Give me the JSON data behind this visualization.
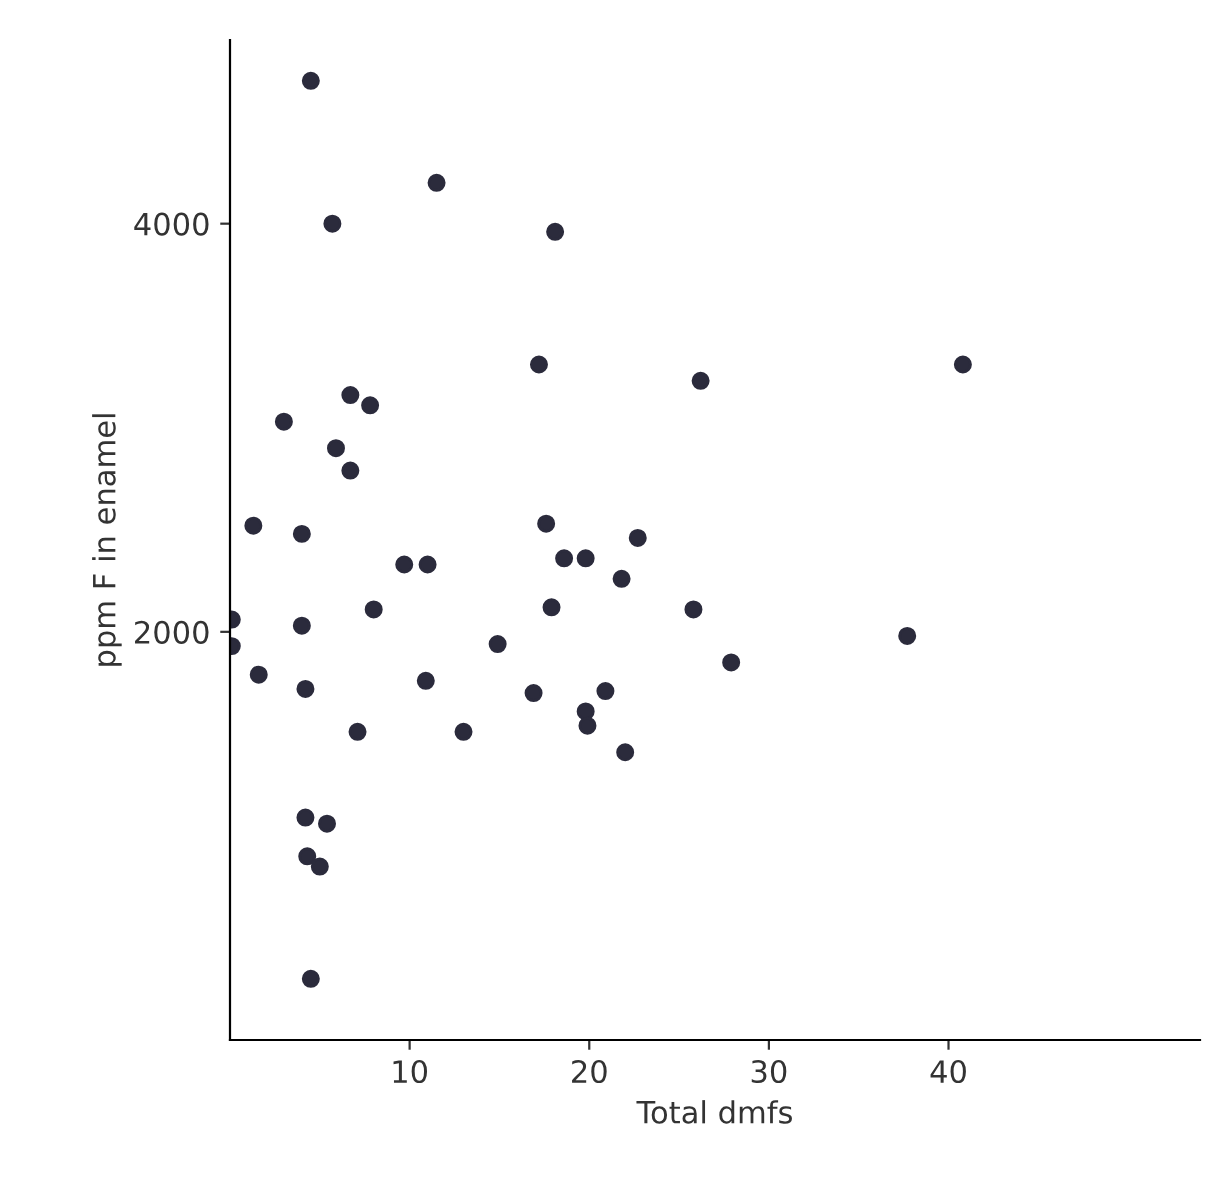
{
  "chart_data": {
    "type": "scatter",
    "xlabel": "Total dmfs",
    "ylabel": "ppm F in enamel",
    "x": [
      4.5,
      11.5,
      5.7,
      18.1,
      17.2,
      6.7,
      7.8,
      3.0,
      5.9,
      6.7,
      1.3,
      4.0,
      17.6,
      9.7,
      11.0,
      18.6,
      19.8,
      17.9,
      0.1,
      4.0,
      8.0,
      0.1,
      14.9,
      1.6,
      4.2,
      10.9,
      16.9,
      19.8,
      19.9,
      7.1,
      13.0,
      4.2,
      5.4,
      4.3,
      5.0,
      4.5,
      26.2,
      40.8,
      22.7,
      21.8,
      25.8,
      37.7,
      27.9,
      20.9,
      22.0
    ],
    "values": [
      4700,
      4200,
      4000,
      3960,
      3310,
      3160,
      3110,
      3030,
      2900,
      2790,
      2520,
      2480,
      2530,
      2330,
      2330,
      2360,
      2360,
      2120,
      2060,
      2030,
      2110,
      1930,
      1940,
      1790,
      1720,
      1760,
      1700,
      1610,
      1540,
      1510,
      1510,
      1090,
      1060,
      900,
      850,
      300,
      3230,
      3310,
      2460,
      2260,
      2110,
      1980,
      1850,
      1710,
      1410
    ],
    "color": "#2b2b3c",
    "marker": "circle",
    "xlim": [
      0,
      54
    ],
    "ylim": [
      0,
      4900
    ],
    "xticks": [
      10,
      20,
      30,
      40
    ],
    "yticks": [
      2000,
      4000
    ],
    "grid": false,
    "legend": false
  }
}
